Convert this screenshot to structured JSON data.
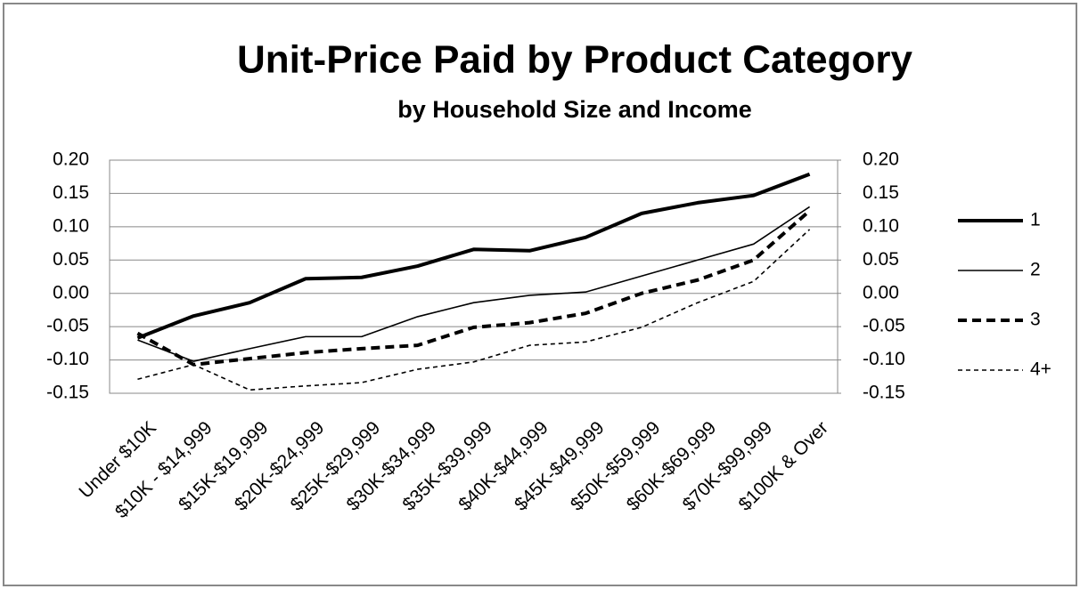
{
  "chart_data": {
    "type": "line",
    "title": "Unit-Price Paid by Product Category",
    "subtitle": "by Household Size and Income",
    "categories": [
      "Under $10K",
      "$10K - $14,999",
      "$15K-$19,999",
      "$20K-$24,999",
      "$25K-$29,999",
      "$30K-$34,999",
      "$35K-$39,999",
      "$40K-$44,999",
      "$45K-$49,999",
      "$50K-$59,999",
      "$60K-$69,999",
      "$70K-$99,999",
      "$100K & Over"
    ],
    "series": [
      {
        "name": "1",
        "color": "#000000",
        "line_style": "solid",
        "line_weight": "heavy",
        "values": [
          -0.067,
          -0.034,
          -0.014,
          0.022,
          0.024,
          0.041,
          0.066,
          0.064,
          0.084,
          0.12,
          0.136,
          0.147,
          0.179
        ]
      },
      {
        "name": "2",
        "color": "#000000",
        "line_style": "solid",
        "line_weight": "light",
        "values": [
          -0.07,
          -0.102,
          -0.083,
          -0.065,
          -0.065,
          -0.035,
          -0.014,
          -0.003,
          0.002,
          0.026,
          0.05,
          0.074,
          0.13
        ]
      },
      {
        "name": "3",
        "color": "#000000",
        "line_style": "dashed",
        "line_weight": "heavy",
        "values": [
          -0.06,
          -0.107,
          -0.098,
          -0.089,
          -0.083,
          -0.078,
          -0.051,
          -0.044,
          -0.03,
          0.0,
          0.02,
          0.05,
          0.124
        ]
      },
      {
        "name": "4+",
        "color": "#000000",
        "line_style": "dashed",
        "line_weight": "light",
        "values": [
          -0.129,
          -0.107,
          -0.145,
          -0.139,
          -0.134,
          -0.114,
          -0.103,
          -0.078,
          -0.073,
          -0.051,
          -0.014,
          0.018,
          0.096
        ]
      }
    ],
    "ylim": [
      -0.15,
      0.2
    ],
    "yticks": [
      -0.15,
      {
        "value": -0.1,
        "label": "-0.10"
      },
      -0.05,
      {
        "value": 0,
        "label": "0.00"
      },
      0.05,
      {
        "value": 0.1,
        "label": "0.10"
      },
      0.15,
      {
        "value": 0.2,
        "label": "0.20"
      }
    ],
    "y2lim": [
      -0.15,
      0.2
    ],
    "y2ticks": [
      -0.15,
      {
        "value": -0.1,
        "label": "-0.10"
      },
      -0.05,
      {
        "value": 0,
        "label": "0.00"
      },
      0.05,
      {
        "value": 0.1,
        "label": "0.10"
      },
      0.15,
      {
        "value": 0.2,
        "label": "0.20"
      }
    ],
    "grid": true,
    "legend": "right"
  }
}
